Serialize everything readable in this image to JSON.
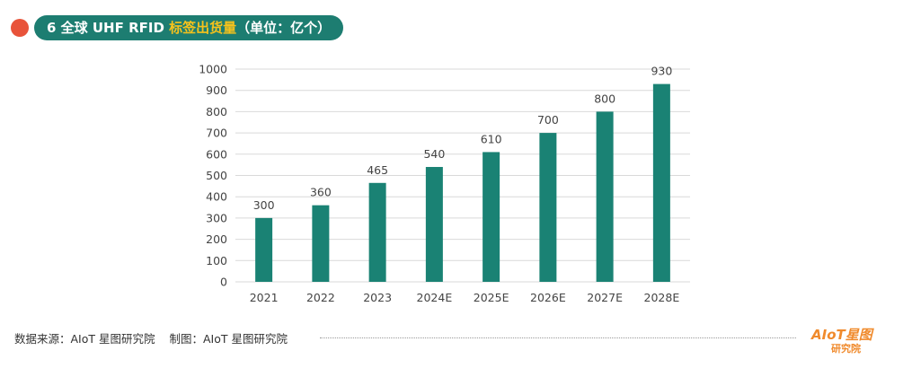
{
  "header": {
    "title_prefix": "6 全球 UHF RFID ",
    "title_highlight": "标签出货量",
    "title_suffix": "（单位：亿个）",
    "accent_color": "#1d7d71",
    "highlight_color": "#f6c21c",
    "dot_color": "#e8533a"
  },
  "chart_data": {
    "type": "bar",
    "categories": [
      "2021",
      "2022",
      "2023",
      "2024E",
      "2025E",
      "2026E",
      "2027E",
      "2028E"
    ],
    "values": [
      300,
      360,
      465,
      540,
      610,
      700,
      800,
      930
    ],
    "ylim": [
      0,
      1000
    ],
    "yticks": [
      0,
      100,
      200,
      300,
      400,
      500,
      600,
      700,
      800,
      900,
      1000
    ],
    "grid": true,
    "bar_color": "#1a8274",
    "data_labels": true
  },
  "footer": {
    "source": "数据来源：AIoT 星图研究院",
    "made_by": "制图：AIoT 星图研究院"
  },
  "logo": {
    "brand": "AIoT星图",
    "sub": "研究院",
    "color": "#f08a2c"
  }
}
